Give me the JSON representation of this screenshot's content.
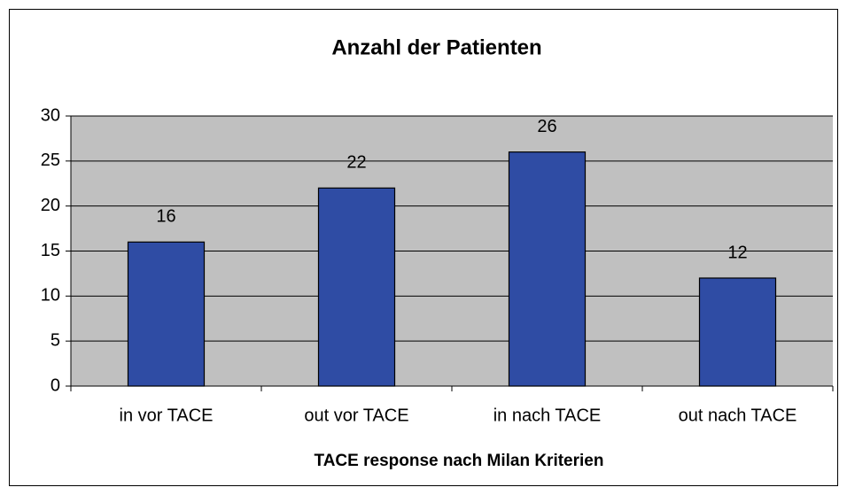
{
  "chart_data": {
    "type": "bar",
    "title": "Anzahl der Patienten",
    "x_label": "TACE response nach Milan Kriterien",
    "categories": [
      "in vor TACE",
      "out vor TACE",
      "in nach TACE",
      "out nach TACE"
    ],
    "values": [
      16,
      22,
      26,
      12
    ],
    "color": "#2f4ca4",
    "ylim": [
      0,
      30
    ],
    "yticks": [
      0,
      5,
      10,
      15,
      20,
      25,
      30
    ],
    "grid": true
  }
}
